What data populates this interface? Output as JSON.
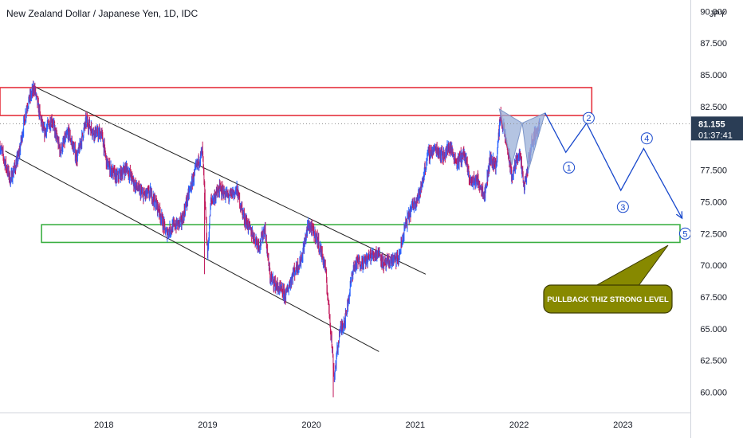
{
  "header": {
    "title": "New Zealand Dollar / Japanese Yen, 1D, IDC",
    "currency": "JPY"
  },
  "price_badge": {
    "price": "81.155",
    "countdown": "01:37:41",
    "color": "#2a3d55"
  },
  "annotation": {
    "text": "PULLBACK THIZ STRONG LEVEL",
    "fill": "#878900"
  },
  "waves": [
    "1",
    "2",
    "3",
    "4",
    "5"
  ],
  "colors": {
    "up": "#2962ff",
    "down": "#c2185b",
    "resistance_box": "#e5323e",
    "support_box": "#3cb043",
    "channel": "#1f1f1f",
    "projection": "#1848cc",
    "pattern_fill": "#9bb0d8"
  },
  "chart_data": {
    "type": "candlestick",
    "instrument": "New Zealand Dollar / Japanese Yen",
    "timeframe": "1D",
    "source": "IDC",
    "x_ticks": [
      "2018",
      "2019",
      "2020",
      "2021",
      "2022",
      "2023"
    ],
    "y_ticks": [
      "90.000",
      "87.500",
      "85.000",
      "82.500",
      "77.500",
      "75.000",
      "72.500",
      "70.000",
      "67.500",
      "65.000",
      "62.500",
      "60.000"
    ],
    "ylim": [
      58.4,
      90.9
    ],
    "xlim": [
      2017.0,
      2023.65
    ],
    "last_price": 81.155,
    "price_path": [
      [
        2017.0,
        79.4
      ],
      [
        2017.1,
        76.7
      ],
      [
        2017.18,
        78.6
      ],
      [
        2017.26,
        82.6
      ],
      [
        2017.33,
        84.0
      ],
      [
        2017.42,
        80.4
      ],
      [
        2017.5,
        81.5
      ],
      [
        2017.58,
        79.0
      ],
      [
        2017.66,
        80.5
      ],
      [
        2017.74,
        78.4
      ],
      [
        2017.83,
        81.4
      ],
      [
        2017.9,
        80.5
      ],
      [
        2017.98,
        80.3
      ],
      [
        2018.03,
        78.0
      ],
      [
        2018.12,
        76.9
      ],
      [
        2018.22,
        77.7
      ],
      [
        2018.3,
        76.3
      ],
      [
        2018.38,
        75.5
      ],
      [
        2018.45,
        75.7
      ],
      [
        2018.53,
        74.4
      ],
      [
        2018.6,
        72.5
      ],
      [
        2018.67,
        73.1
      ],
      [
        2018.75,
        73.4
      ],
      [
        2018.82,
        75.7
      ],
      [
        2018.9,
        77.9
      ],
      [
        2018.95,
        79.0
      ],
      [
        2019.0,
        70.8
      ],
      [
        2019.03,
        75.0
      ],
      [
        2019.12,
        76.0
      ],
      [
        2019.2,
        75.4
      ],
      [
        2019.28,
        75.9
      ],
      [
        2019.35,
        73.8
      ],
      [
        2019.42,
        72.6
      ],
      [
        2019.5,
        71.5
      ],
      [
        2019.55,
        73.0
      ],
      [
        2019.6,
        69.1
      ],
      [
        2019.68,
        68.2
      ],
      [
        2019.75,
        67.6
      ],
      [
        2019.82,
        69.3
      ],
      [
        2019.9,
        70.4
      ],
      [
        2019.97,
        73.2
      ],
      [
        2020.05,
        72.2
      ],
      [
        2020.13,
        70.0
      ],
      [
        2020.18,
        65.5
      ],
      [
        2020.22,
        61.2
      ],
      [
        2020.27,
        64.7
      ],
      [
        2020.33,
        65.9
      ],
      [
        2020.4,
        69.7
      ],
      [
        2020.45,
        70.3
      ],
      [
        2020.5,
        70.2
      ],
      [
        2020.58,
        70.8
      ],
      [
        2020.65,
        71.0
      ],
      [
        2020.7,
        70.0
      ],
      [
        2020.78,
        70.4
      ],
      [
        2020.84,
        70.5
      ],
      [
        2020.9,
        73.0
      ],
      [
        2020.97,
        74.6
      ],
      [
        2021.05,
        75.8
      ],
      [
        2021.12,
        78.7
      ],
      [
        2021.2,
        79.2
      ],
      [
        2021.27,
        78.6
      ],
      [
        2021.33,
        79.4
      ],
      [
        2021.4,
        78.1
      ],
      [
        2021.47,
        78.8
      ],
      [
        2021.53,
        76.6
      ],
      [
        2021.6,
        76.7
      ],
      [
        2021.67,
        75.6
      ],
      [
        2021.72,
        78.4
      ],
      [
        2021.78,
        77.9
      ],
      [
        2021.82,
        81.9
      ],
      [
        2021.88,
        79.6
      ],
      [
        2021.93,
        76.9
      ],
      [
        2022.0,
        79.0
      ],
      [
        2022.05,
        76.0
      ],
      [
        2022.12,
        79.6
      ],
      [
        2022.2,
        81.1
      ]
    ],
    "spikes": [
      {
        "x": 2018.97,
        "low": 69.3
      },
      {
        "x": 2020.21,
        "low": 59.6
      }
    ],
    "zones": [
      {
        "name": "resistance",
        "y1": 81.8,
        "y2": 84.0,
        "x1": 2017.0,
        "x2": 2022.7
      },
      {
        "name": "support",
        "y1": 71.8,
        "y2": 73.2,
        "x1": 2017.4,
        "x2": 2023.55
      }
    ],
    "channel_lines": [
      [
        [
          2017.35,
          84.0
        ],
        [
          2021.1,
          69.3
        ]
      ],
      [
        [
          2017.05,
          79.0
        ],
        [
          2020.65,
          63.2
        ]
      ]
    ],
    "harmonic_pattern": [
      [
        2021.81,
        82.3
      ],
      [
        2021.93,
        77.9
      ],
      [
        2022.03,
        81.2
      ],
      [
        2022.09,
        77.5
      ],
      [
        2022.25,
        82.0
      ]
    ],
    "projection_path": [
      [
        2022.25,
        82.0
      ],
      [
        2022.45,
        78.9
      ],
      [
        2022.65,
        81.2
      ],
      [
        2022.98,
        75.9
      ],
      [
        2023.2,
        79.2
      ],
      [
        2023.57,
        73.7
      ]
    ],
    "wave_labels": [
      {
        "label": "1",
        "x": 2022.48,
        "y": 77.7
      },
      {
        "label": "2",
        "x": 2022.67,
        "y": 81.6
      },
      {
        "label": "3",
        "x": 2023.0,
        "y": 74.6
      },
      {
        "label": "4",
        "x": 2023.23,
        "y": 80.0
      },
      {
        "label": "5",
        "x": 2023.6,
        "y": 72.5
      }
    ],
    "grid": false
  }
}
